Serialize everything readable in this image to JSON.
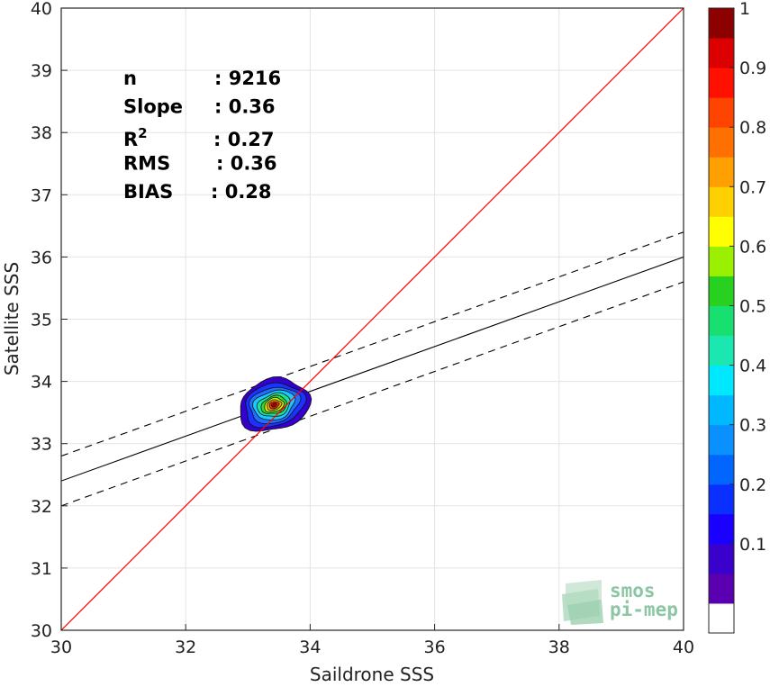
{
  "chart_data": {
    "type": "scatter",
    "subtype": "density-contour",
    "xlabel": "Saildrone SSS",
    "ylabel": "Satellite SSS",
    "xlim": [
      30,
      40
    ],
    "ylim": [
      30,
      40
    ],
    "xticks": [
      30,
      32,
      34,
      36,
      38,
      40
    ],
    "yticks": [
      30,
      31,
      32,
      33,
      34,
      35,
      36,
      37,
      38,
      39,
      40
    ],
    "grid": true,
    "stats": [
      {
        "key": "n",
        "sep": ":",
        "value": "9216"
      },
      {
        "key": "Slope",
        "sep": ":",
        "value": "0.36"
      },
      {
        "key": "R",
        "sup": "2",
        "sep": ":",
        "value": "0.27"
      },
      {
        "key": "RMS",
        "sep": ":",
        "value": "0.36"
      },
      {
        "key": "BIAS",
        "sep": ":",
        "value": "0.28"
      }
    ],
    "identity_line": {
      "color": "#ff0000"
    },
    "fit_line": {
      "intercept": 21.6,
      "slope": 0.36,
      "band": 0.4,
      "color": "#000000"
    },
    "density": {
      "center": [
        33.42,
        33.62
      ],
      "levels": [
        {
          "level": 0.05,
          "rx": 0.58,
          "ry": 0.41,
          "color": "#3300cc"
        },
        {
          "level": 0.15,
          "rx": 0.49,
          "ry": 0.34,
          "color": "#1a33ff"
        },
        {
          "level": 0.25,
          "rx": 0.41,
          "ry": 0.28,
          "color": "#1f70ff"
        },
        {
          "level": 0.35,
          "rx": 0.34,
          "ry": 0.23,
          "color": "#19c8ff"
        },
        {
          "level": 0.45,
          "rx": 0.27,
          "ry": 0.18,
          "color": "#18e6a0"
        },
        {
          "level": 0.55,
          "rx": 0.21,
          "ry": 0.14,
          "color": "#3ad630"
        },
        {
          "level": 0.65,
          "rx": 0.16,
          "ry": 0.11,
          "color": "#d8f000"
        },
        {
          "level": 0.75,
          "rx": 0.12,
          "ry": 0.08,
          "color": "#ffaa00"
        },
        {
          "level": 0.85,
          "rx": 0.08,
          "ry": 0.055,
          "color": "#ff3300"
        },
        {
          "level": 0.95,
          "rx": 0.045,
          "ry": 0.03,
          "color": "#a80000"
        }
      ]
    },
    "colorbar": {
      "ticks": [
        "0.1",
        "0.2",
        "0.3",
        "0.4",
        "0.5",
        "0.6",
        "0.7",
        "0.8",
        "0.9",
        "1"
      ],
      "colors": [
        "#ffffff",
        "#5a00b0",
        "#3a00cc",
        "#1a00ff",
        "#0a30ff",
        "#0066ff",
        "#0a90ff",
        "#00b8ff",
        "#00e8ff",
        "#1ae8b0",
        "#18e070",
        "#28d020",
        "#9af000",
        "#ffff00",
        "#ffd000",
        "#ffa000",
        "#ff7000",
        "#ff4400",
        "#ff1000",
        "#dd0000",
        "#8c0000"
      ]
    }
  },
  "logo": {
    "line1": "smos",
    "line2": "pi-mep"
  }
}
